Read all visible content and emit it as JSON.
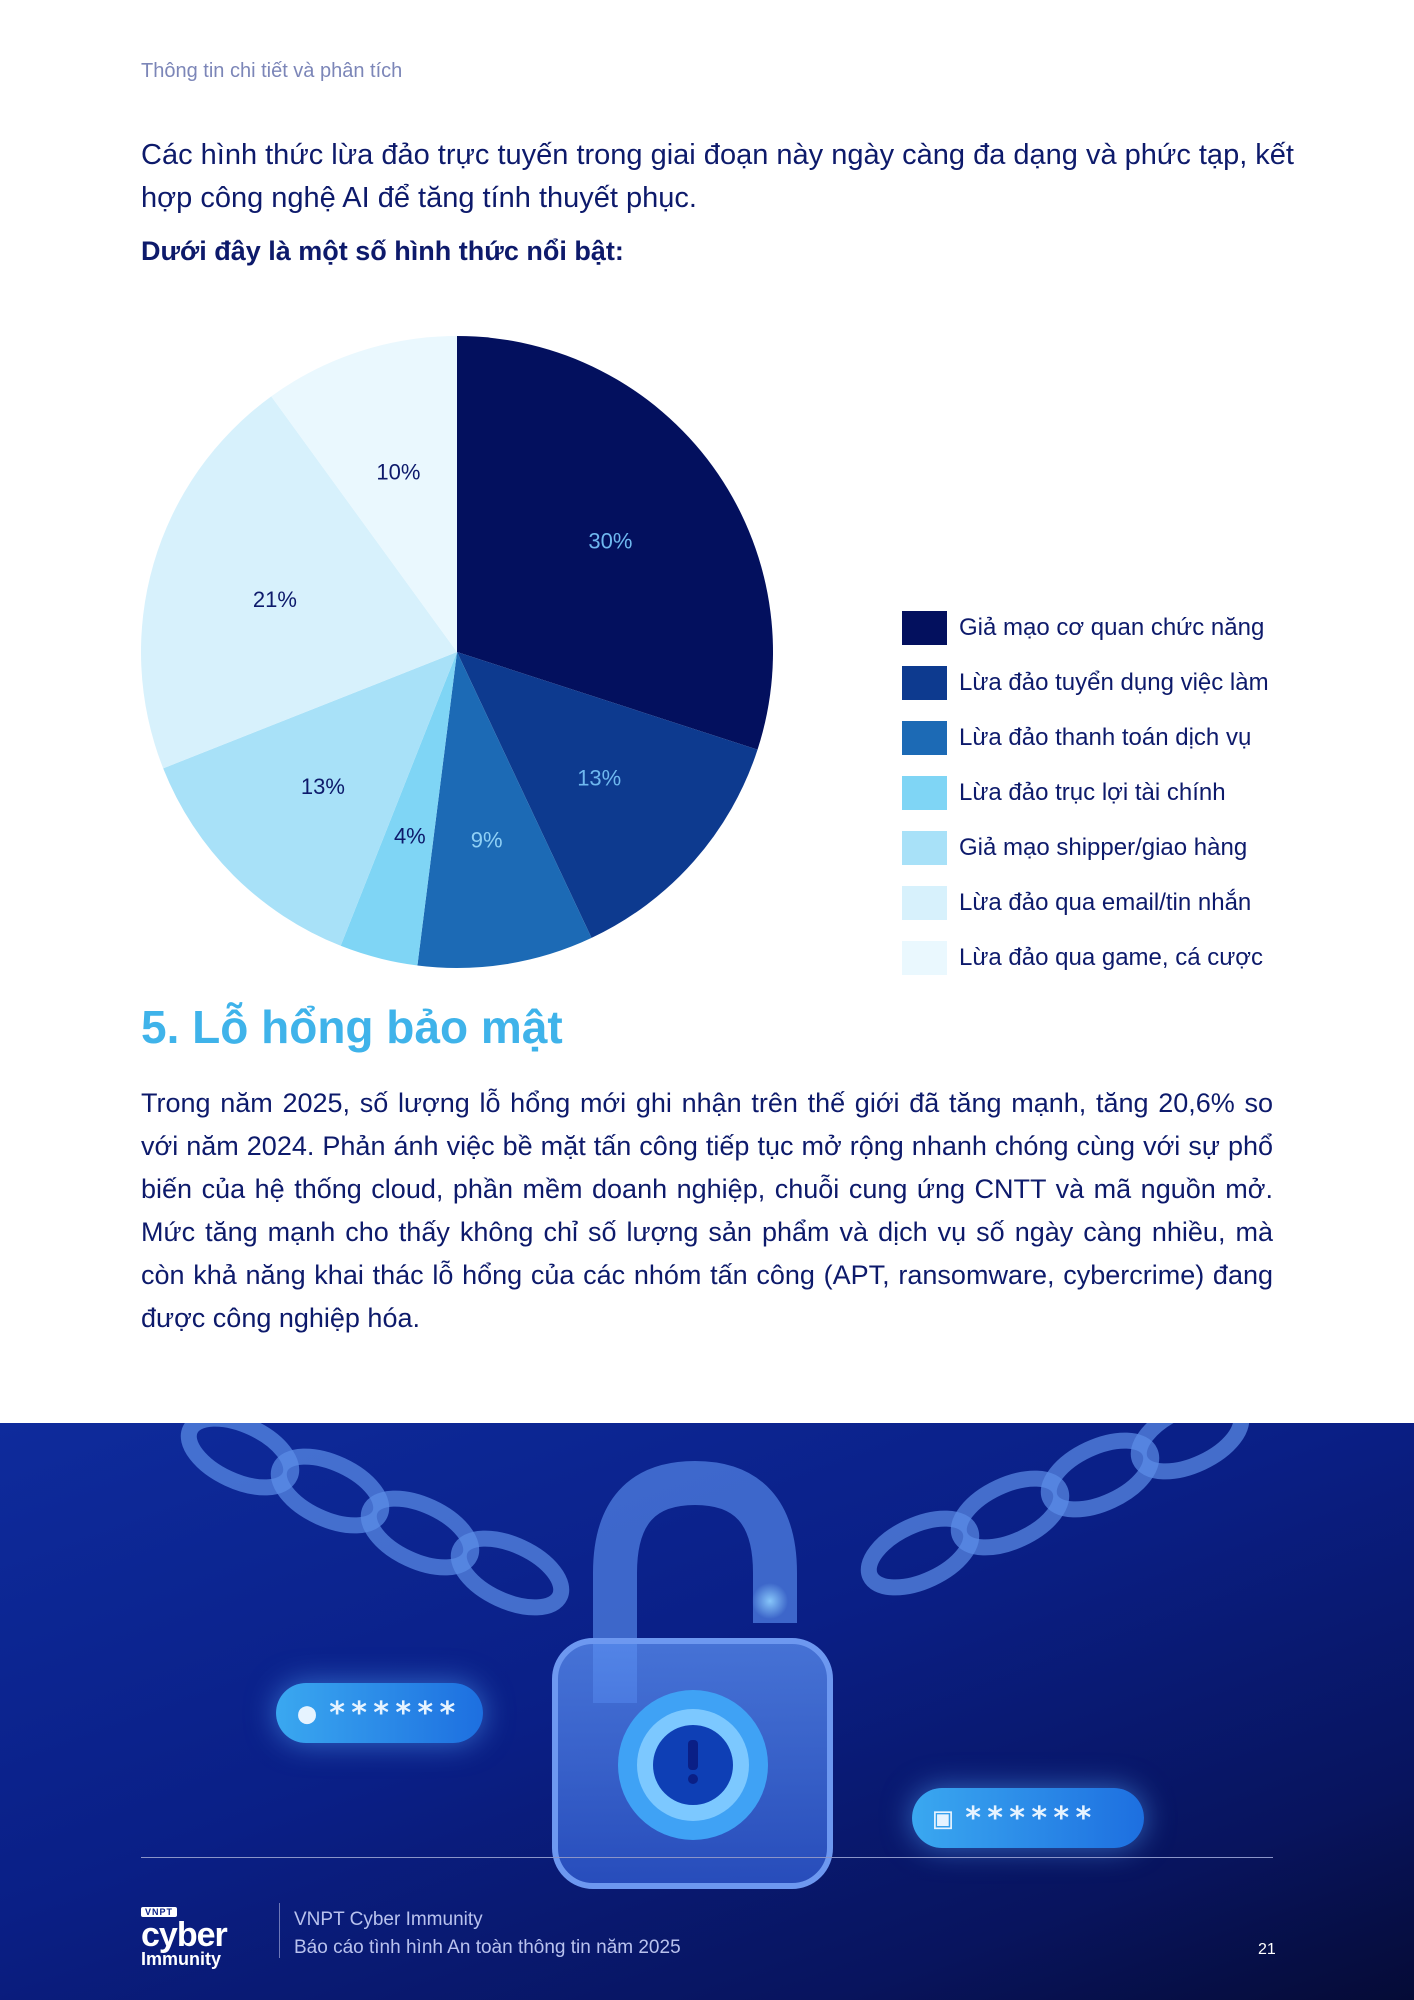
{
  "header": {
    "running_title": "Thông tin chi tiết và phân tích"
  },
  "intro": {
    "paragraph": "Các hình thức lừa đảo trực tuyến trong giai đoạn này ngày càng đa dạng và phức tạp, kết hợp công nghệ AI để tăng tính thuyết phục.",
    "lead": "Dưới đây là một số hình thức nổi bật:"
  },
  "chart_data": {
    "type": "pie",
    "title": "",
    "slices": [
      {
        "label": "Giả mạo cơ quan chức năng",
        "value": 30,
        "display": "30%",
        "color": "#03105e",
        "label_color": "#6fb8ef"
      },
      {
        "label": "Lừa đảo tuyển dụng việc làm",
        "value": 13,
        "display": "13%",
        "color": "#0d3a8f",
        "label_color": "#6fb8ef"
      },
      {
        "label": "Lừa đảo thanh toán dịch vụ",
        "value": 9,
        "display": "9%",
        "color": "#1c6ab5",
        "label_color": "#8fd0f5"
      },
      {
        "label": "Lừa đảo trục lợi tài chính",
        "value": 4,
        "display": "4%",
        "color": "#7fd5f5",
        "label_color": "#0d1a6b"
      },
      {
        "label": "Giả mạo shipper/giao hàng",
        "value": 13,
        "display": "13%",
        "color": "#a8e1f8",
        "label_color": "#0d1a6b"
      },
      {
        "label": "Lừa đảo qua email/tin nhắn",
        "value": 21,
        "display": "21%",
        "color": "#d7f1fc",
        "label_color": "#0d1a6b"
      },
      {
        "label": "Lừa đảo qua game, cá cược",
        "value": 10,
        "display": "10%",
        "color": "#eaf8fe",
        "label_color": "#0d1a6b"
      }
    ],
    "legend_position": "right"
  },
  "section": {
    "title": "5. Lỗ hổng bảo mật",
    "body": "Trong năm 2025, số lượng lỗ hổng mới ghi nhận trên thế giới đã tăng mạnh, tăng 20,6% so với năm 2024. Phản ánh việc bề mặt tấn công tiếp tục mở rộng nhanh chóng cùng với sự phổ biến của hệ thống cloud, phần mềm doanh nghiệp, chuỗi cung ứng CNTT và mã nguồn mở. Mức tăng mạnh cho thấy không chỉ số lượng sản phẩm và dịch vụ số ngày càng nhiều, mà còn khả năng khai thác lỗ hổng của các nhóm tấn công (APT, ransomware, cybercrime) đang được công nghiệp hóa."
  },
  "banner": {
    "username_mask": "******",
    "password_mask": "******",
    "icons": [
      "chain-icon",
      "padlock-icon",
      "user-icon",
      "lock-icon",
      "exclamation-icon"
    ]
  },
  "footer": {
    "logo_tag": "VNPT",
    "logo_word1": "cyber",
    "logo_word2": "Immunity",
    "org": "VNPT Cyber Immunity",
    "report_title": "Báo cáo tình hình An toàn thông tin năm 2025",
    "page_number": "21"
  },
  "colors": {
    "navy_text": "#0d1a6b",
    "accent_cyan": "#3fb3ea",
    "banner_dark": "#0a1f86"
  }
}
